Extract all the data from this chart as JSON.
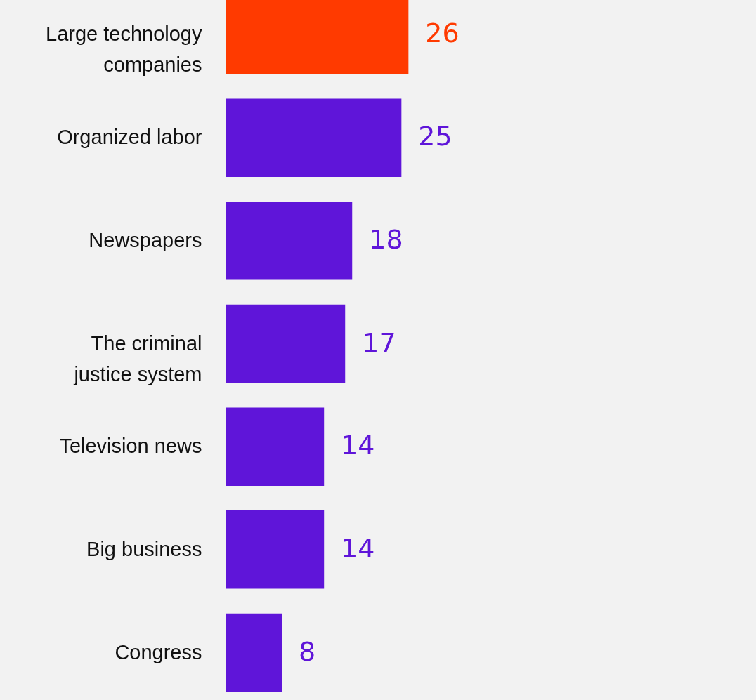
{
  "chart_data": {
    "type": "bar",
    "orientation": "horizontal",
    "data_labels": true,
    "categories": [
      "Large technology companies",
      "Organized labor",
      "Newspapers",
      "The criminal justice system",
      "Television news",
      "Big business",
      "Congress"
    ],
    "values": [
      26,
      25,
      18,
      17,
      14,
      14,
      8
    ],
    "colors": [
      "#ff3a00",
      "#5f15d9",
      "#5f15d9",
      "#5f15d9",
      "#5f15d9",
      "#5f15d9",
      "#5f15d9"
    ]
  }
}
